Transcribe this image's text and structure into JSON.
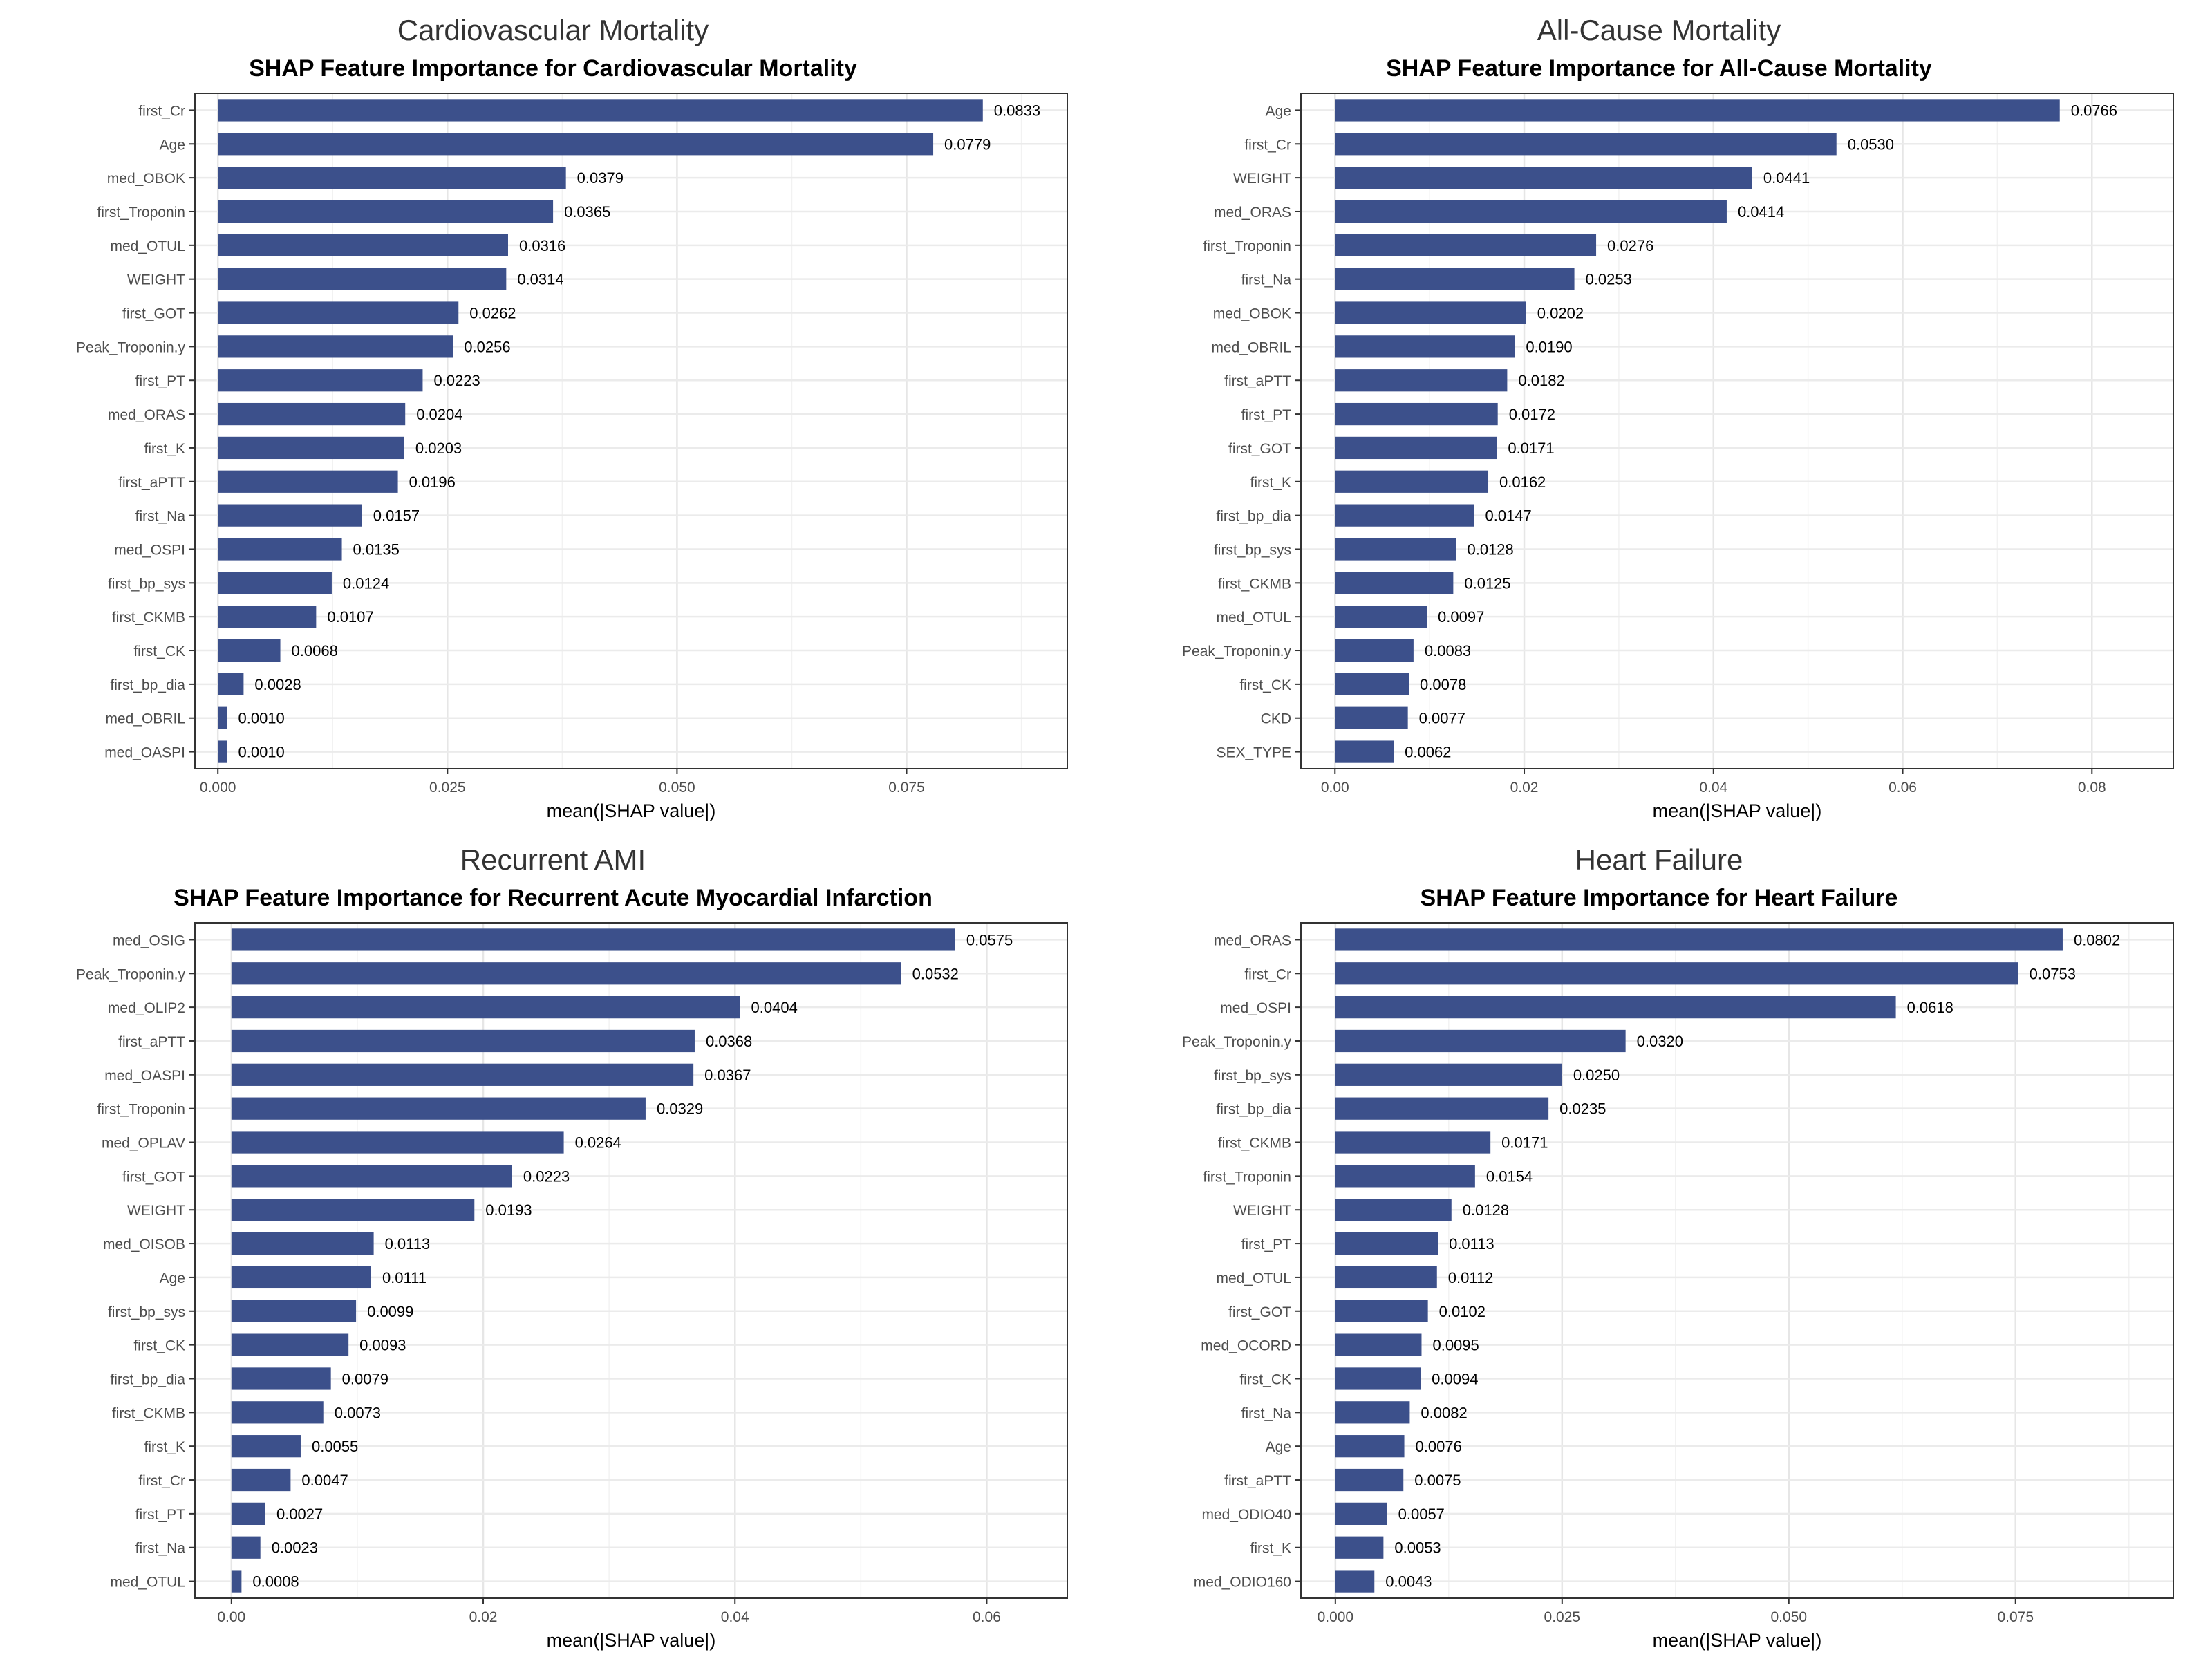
{
  "chart_data": [
    {
      "type": "bar",
      "orientation": "horizontal",
      "title": "Cardiovascular Mortality",
      "subtitle": "SHAP Feature Importance for Cardiovascular Mortality",
      "xlabel": "mean(|SHAP value|)",
      "ylabel": "",
      "xlim": [
        -0.0025,
        0.0925
      ],
      "xticks": [
        0,
        0.025,
        0.05,
        0.075
      ],
      "xtick_labels": [
        "0.000",
        "0.025",
        "0.050",
        "0.075"
      ],
      "grid": true,
      "bar_color": "#3c508b",
      "categories": [
        "first_Cr",
        "Age",
        "med_OBOK",
        "first_Troponin",
        "med_OTUL",
        "WEIGHT",
        "first_GOT",
        "Peak_Troponin.y",
        "first_PT",
        "med_ORAS",
        "first_K",
        "first_aPTT",
        "first_Na",
        "med_OSPI",
        "first_bp_sys",
        "first_CKMB",
        "first_CK",
        "first_bp_dia",
        "med_OBRIL",
        "med_OASPI"
      ],
      "values": [
        0.0833,
        0.0779,
        0.0379,
        0.0365,
        0.0316,
        0.0314,
        0.0262,
        0.0256,
        0.0223,
        0.0204,
        0.0203,
        0.0196,
        0.0157,
        0.0135,
        0.0124,
        0.0107,
        0.0068,
        0.0028,
        0.001,
        0.001
      ],
      "value_labels": [
        "0.0833",
        "0.0779",
        "0.0379",
        "0.0365",
        "0.0316",
        "0.0314",
        "0.0262",
        "0.0256",
        "0.0223",
        "0.0204",
        "0.0203",
        "0.0196",
        "0.0157",
        "0.0135",
        "0.0124",
        "0.0107",
        "0.0068",
        "0.0028",
        "0.0010",
        "0.0010"
      ]
    },
    {
      "type": "bar",
      "orientation": "horizontal",
      "title": "All-Cause Mortality",
      "subtitle": "SHAP Feature Importance for All-Cause Mortality",
      "xlabel": "mean(|SHAP value|)",
      "ylabel": "",
      "xlim": [
        -0.0036,
        0.0886
      ],
      "xticks": [
        0,
        0.02,
        0.04,
        0.06,
        0.08
      ],
      "xtick_labels": [
        "0.00",
        "0.02",
        "0.04",
        "0.06",
        "0.08"
      ],
      "grid": true,
      "bar_color": "#3c508b",
      "categories": [
        "Age",
        "first_Cr",
        "WEIGHT",
        "med_ORAS",
        "first_Troponin",
        "first_Na",
        "med_OBOK",
        "med_OBRIL",
        "first_aPTT",
        "first_PT",
        "first_GOT",
        "first_K",
        "first_bp_dia",
        "first_bp_sys",
        "first_CKMB",
        "med_OTUL",
        "Peak_Troponin.y",
        "first_CK",
        "CKD",
        "SEX_TYPE"
      ],
      "values": [
        0.0766,
        0.053,
        0.0441,
        0.0414,
        0.0276,
        0.0253,
        0.0202,
        0.019,
        0.0182,
        0.0172,
        0.0171,
        0.0162,
        0.0147,
        0.0128,
        0.0125,
        0.0097,
        0.0083,
        0.0078,
        0.0077,
        0.0062
      ],
      "value_labels": [
        "0.0766",
        "0.0530",
        "0.0441",
        "0.0414",
        "0.0276",
        "0.0253",
        "0.0202",
        "0.0190",
        "0.0182",
        "0.0172",
        "0.0171",
        "0.0162",
        "0.0147",
        "0.0128",
        "0.0125",
        "0.0097",
        "0.0083",
        "0.0078",
        "0.0077",
        "0.0062"
      ]
    },
    {
      "type": "bar",
      "orientation": "horizontal",
      "title": "Recurrent AMI",
      "subtitle": "SHAP Feature Importance for Recurrent Acute Myocardial Infarction",
      "xlabel": "mean(|SHAP value|)",
      "ylabel": "",
      "xlim": [
        -0.0029,
        0.0664
      ],
      "xticks": [
        0,
        0.02,
        0.04,
        0.06
      ],
      "xtick_labels": [
        "0.00",
        "0.02",
        "0.04",
        "0.06"
      ],
      "grid": true,
      "bar_color": "#3c508b",
      "categories": [
        "med_OSIG",
        "Peak_Troponin.y",
        "med_OLIP2",
        "first_aPTT",
        "med_OASPI",
        "first_Troponin",
        "med_OPLAV",
        "first_GOT",
        "WEIGHT",
        "med_OISOB",
        "Age",
        "first_bp_sys",
        "first_CK",
        "first_bp_dia",
        "first_CKMB",
        "first_K",
        "first_Cr",
        "first_PT",
        "first_Na",
        "med_OTUL"
      ],
      "values": [
        0.0575,
        0.0532,
        0.0404,
        0.0368,
        0.0367,
        0.0329,
        0.0264,
        0.0223,
        0.0193,
        0.0113,
        0.0111,
        0.0099,
        0.0093,
        0.0079,
        0.0073,
        0.0055,
        0.0047,
        0.0027,
        0.0023,
        0.0008
      ],
      "value_labels": [
        "0.0575",
        "0.0532",
        "0.0404",
        "0.0368",
        "0.0367",
        "0.0329",
        "0.0264",
        "0.0223",
        "0.0193",
        "0.0113",
        "0.0111",
        "0.0099",
        "0.0093",
        "0.0079",
        "0.0073",
        "0.0055",
        "0.0047",
        "0.0027",
        "0.0023",
        "0.0008"
      ]
    },
    {
      "type": "bar",
      "orientation": "horizontal",
      "title": "Heart Failure",
      "subtitle": "SHAP Feature Importance for Heart Failure",
      "xlabel": "mean(|SHAP value|)",
      "ylabel": "",
      "xlim": [
        -0.0038,
        0.0924
      ],
      "xticks": [
        0,
        0.025,
        0.05,
        0.075
      ],
      "xtick_labels": [
        "0.000",
        "0.025",
        "0.050",
        "0.075"
      ],
      "grid": true,
      "bar_color": "#3c508b",
      "categories": [
        "med_ORAS",
        "first_Cr",
        "med_OSPI",
        "Peak_Troponin.y",
        "first_bp_sys",
        "first_bp_dia",
        "first_CKMB",
        "first_Troponin",
        "WEIGHT",
        "first_PT",
        "med_OTUL",
        "first_GOT",
        "med_OCORD",
        "first_CK",
        "first_Na",
        "Age",
        "first_aPTT",
        "med_ODIO40",
        "first_K",
        "med_ODIO160"
      ],
      "values": [
        0.0802,
        0.0753,
        0.0618,
        0.032,
        0.025,
        0.0235,
        0.0171,
        0.0154,
        0.0128,
        0.0113,
        0.0112,
        0.0102,
        0.0095,
        0.0094,
        0.0082,
        0.0076,
        0.0075,
        0.0057,
        0.0053,
        0.0043
      ],
      "value_labels": [
        "0.0802",
        "0.0753",
        "0.0618",
        "0.0320",
        "0.0250",
        "0.0235",
        "0.0171",
        "0.0154",
        "0.0128",
        "0.0113",
        "0.0112",
        "0.0102",
        "0.0095",
        "0.0094",
        "0.0082",
        "0.0076",
        "0.0075",
        "0.0057",
        "0.0053",
        "0.0043"
      ]
    }
  ]
}
